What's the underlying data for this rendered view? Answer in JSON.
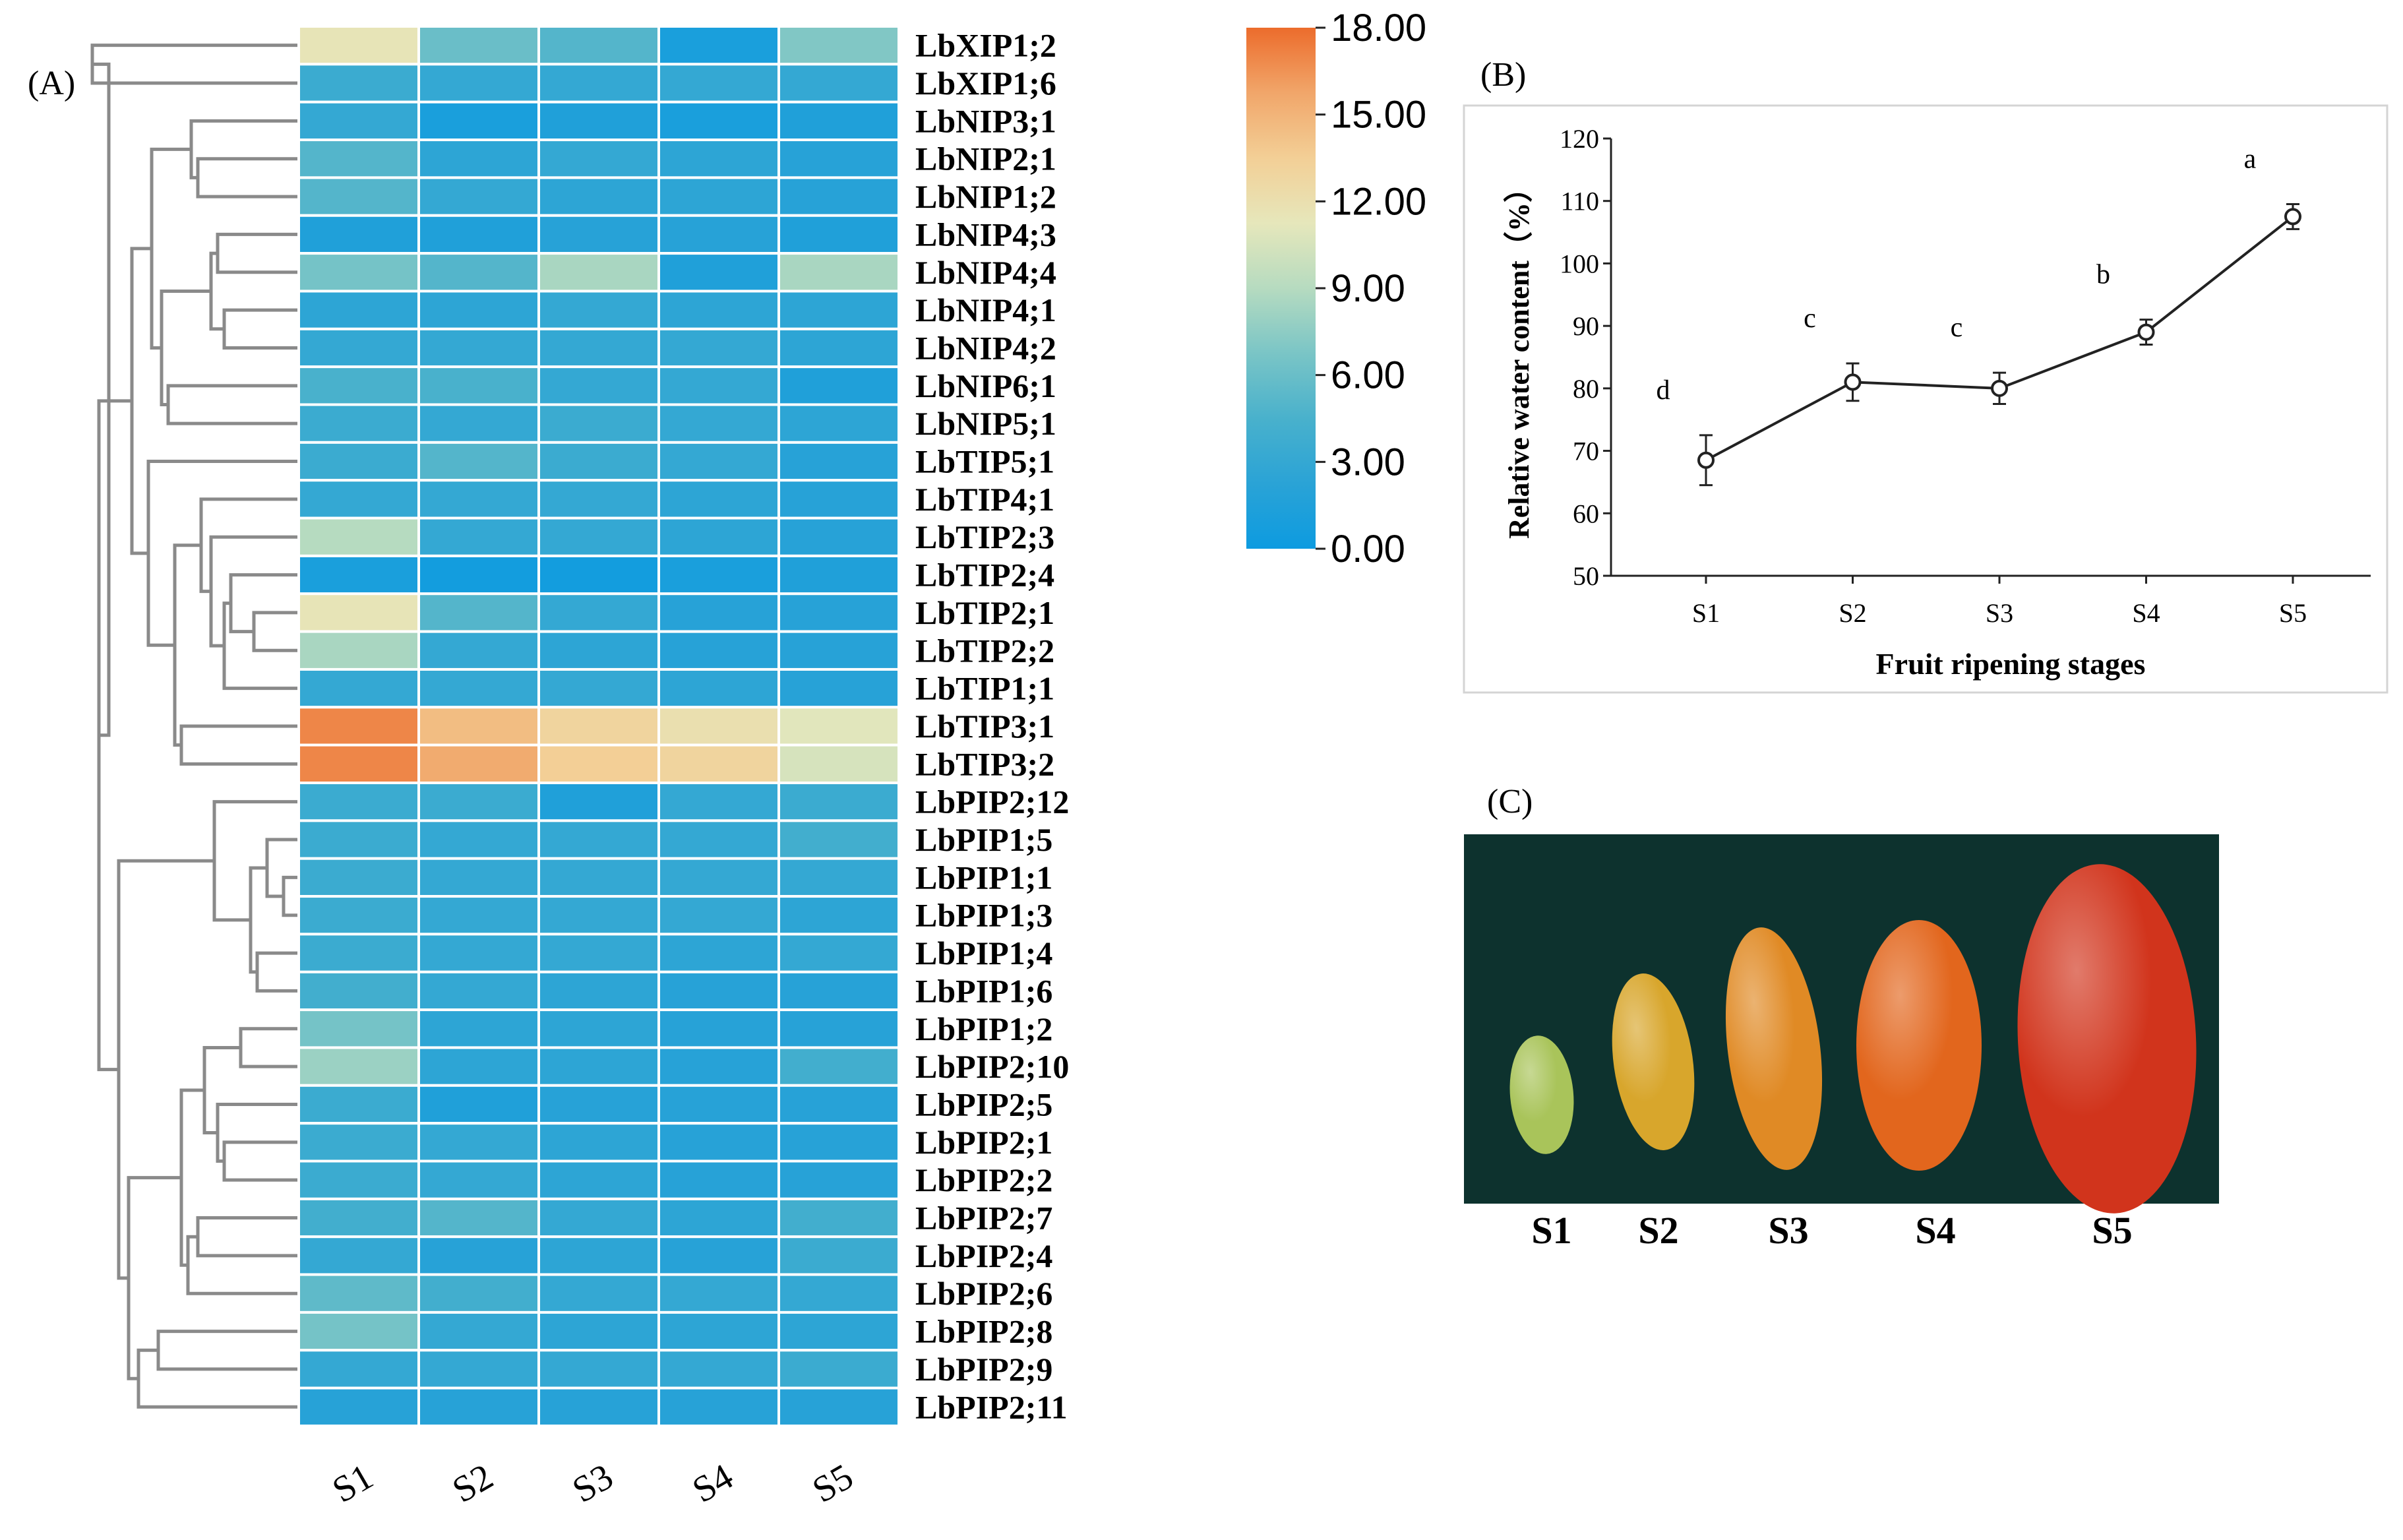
{
  "figure": {
    "panel_a_label": "(A)",
    "panel_b_label": "(B)",
    "panel_c_label": "(C)"
  },
  "colors": {
    "ramp": [
      "#0d9be0",
      "#2aa3d6",
      "#49b1cc",
      "#7ac5c6",
      "#b6dbc0",
      "#e6e7bb",
      "#f3cf96",
      "#f1a66a",
      "#ec6c2c"
    ],
    "photo_bg": "#0d322e",
    "fruit": [
      "#a9c45a",
      "#d8a62c",
      "#e08a25",
      "#e2661d",
      "#d1341c"
    ]
  },
  "chart_data": [
    {
      "type": "heatmap",
      "id": "A",
      "columns": [
        "S1",
        "S2",
        "S3",
        "S4",
        "S5"
      ],
      "rows": [
        "LbXIP1;2",
        "LbXIP1;6",
        "LbNIP3;1",
        "LbNIP2;1",
        "LbNIP1;2",
        "LbNIP4;3",
        "LbNIP4;4",
        "LbNIP4;1",
        "LbNIP4;2",
        "LbNIP6;1",
        "LbNIP5;1",
        "LbTIP5;1",
        "LbTIP4;1",
        "LbTIP2;3",
        "LbTIP2;4",
        "LbTIP2;1",
        "LbTIP2;2",
        "LbTIP1;1",
        "LbTIP3;1",
        "LbTIP3;2",
        "LbPIP2;12",
        "LbPIP1;5",
        "LbPIP1;1",
        "LbPIP1;3",
        "LbPIP1;4",
        "LbPIP1;6",
        "LbPIP1;2",
        "LbPIP2;10",
        "LbPIP2;5",
        "LbPIP2;1",
        "LbPIP2;2",
        "LbPIP2;7",
        "LbPIP2;4",
        "LbPIP2;6",
        "LbPIP2;8",
        "LbPIP2;9",
        "LbPIP2;11"
      ],
      "values": [
        [
          11.5,
          6,
          5,
          1,
          7
        ],
        [
          3.5,
          3,
          3,
          3,
          3
        ],
        [
          3,
          1,
          1.5,
          1,
          1.5
        ],
        [
          5,
          2.5,
          3,
          2.5,
          2
        ],
        [
          5,
          3,
          2.5,
          2.5,
          2
        ],
        [
          1.5,
          1.5,
          2,
          2,
          1.5
        ],
        [
          6.5,
          5,
          8.5,
          1.5,
          8.5
        ],
        [
          2.5,
          2.5,
          3,
          2.5,
          2.5
        ],
        [
          3,
          3,
          3,
          3,
          2.5
        ],
        [
          4.5,
          4.5,
          3,
          3,
          1.5
        ],
        [
          3.5,
          3,
          3.5,
          3,
          2.5
        ],
        [
          3.5,
          5,
          3.5,
          3,
          2
        ],
        [
          3,
          3,
          3,
          2.5,
          2
        ],
        [
          9,
          3,
          3,
          2.5,
          2
        ],
        [
          1,
          0.5,
          0.5,
          1,
          1.5
        ],
        [
          11.5,
          5,
          3,
          2,
          2
        ],
        [
          8.5,
          3,
          2.5,
          2,
          2
        ],
        [
          3,
          3,
          3,
          2.5,
          2
        ],
        [
          17,
          14.5,
          13,
          12,
          11
        ],
        [
          17,
          15.5,
          13.5,
          13,
          10.5
        ],
        [
          3.5,
          3.5,
          1.5,
          3,
          3.5
        ],
        [
          3.5,
          3,
          3,
          3,
          4
        ],
        [
          3.5,
          3,
          3,
          3,
          3
        ],
        [
          3.5,
          3,
          3,
          3,
          2.5
        ],
        [
          3.5,
          3,
          3,
          2.5,
          3
        ],
        [
          4,
          3,
          2.5,
          2,
          2
        ],
        [
          6.5,
          2.5,
          2.5,
          2,
          2
        ],
        [
          8,
          2.5,
          2.5,
          2,
          4
        ],
        [
          3.5,
          1.5,
          2,
          2,
          2
        ],
        [
          3.5,
          3,
          2.5,
          2,
          2
        ],
        [
          3.5,
          3,
          2.5,
          2,
          2
        ],
        [
          4,
          5,
          3,
          2.5,
          4
        ],
        [
          3,
          2,
          2.5,
          2,
          3.5
        ],
        [
          5.5,
          4,
          3,
          3,
          3
        ],
        [
          6.5,
          3,
          2.5,
          2.5,
          2.5
        ],
        [
          3,
          3,
          3,
          3,
          3.5
        ],
        [
          2,
          2,
          2,
          2,
          2
        ]
      ],
      "colorbar": {
        "min": 0,
        "max": 18,
        "tick_labels": [
          "18.00",
          "15.00",
          "12.00",
          "9.00",
          "6.00",
          "3.00",
          "0.00"
        ]
      }
    },
    {
      "type": "line",
      "id": "B",
      "categories": [
        "S1",
        "S2",
        "S3",
        "S4",
        "S5"
      ],
      "values": [
        68.5,
        81,
        80,
        89,
        107.5
      ],
      "errors": [
        4,
        3,
        2.5,
        2,
        2
      ],
      "significance": [
        "d",
        "c",
        "c",
        "b",
        "a"
      ],
      "xlabel": "Fruit ripening stages",
      "ylabel": "Relative water content（%）",
      "ylim": [
        50,
        120
      ],
      "yticks": [
        "50",
        "60",
        "70",
        "80",
        "90",
        "100",
        "110",
        "120"
      ]
    }
  ],
  "photo": {
    "stage_labels": [
      "S1",
      "S2",
      "S3",
      "S4",
      "S5"
    ]
  }
}
